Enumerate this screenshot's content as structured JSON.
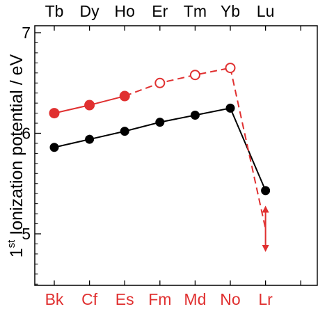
{
  "chart_data": {
    "type": "line",
    "ylabel_prefix": "1",
    "ylabel_superscript": "st",
    "ylabel_main": "Ionization potential / eV",
    "ylim": [
      4.5,
      7.1
    ],
    "yticks": [
      5,
      6,
      7
    ],
    "categories_bottom": [
      "Bk",
      "Cf",
      "Es",
      "Fm",
      "Md",
      "No",
      "Lr"
    ],
    "categories_top": [
      "Tb",
      "Dy",
      "Ho",
      "Er",
      "Tm",
      "Yb",
      "Lu"
    ],
    "colors": {
      "lanthanide": "#000000",
      "actinide": "#e03030",
      "axis": "#000000"
    },
    "series": [
      {
        "group": "lanthanides",
        "labels": [
          "Tb",
          "Dy",
          "Ho",
          "Er",
          "Tm",
          "Yb",
          "Lu"
        ],
        "values": [
          5.86,
          5.94,
          6.02,
          6.11,
          6.18,
          6.25,
          5.43
        ],
        "marker": "filled",
        "line": "solid"
      },
      {
        "group": "actinides-measured",
        "labels": [
          "Bk",
          "Cf",
          "Es"
        ],
        "values": [
          6.2,
          6.28,
          6.37
        ],
        "marker": "filled-large",
        "line": "solid"
      },
      {
        "group": "actinides-predicted",
        "labels": [
          "Es",
          "Fm",
          "Md",
          "No"
        ],
        "values": [
          6.37,
          6.5,
          6.58,
          6.65
        ],
        "marker": "open",
        "line": "dashed"
      },
      {
        "group": "lr-prediction",
        "labels": [
          "No",
          "Lr"
        ],
        "values": [
          6.65,
          5.05
        ],
        "marker": "none",
        "line": "dashed"
      }
    ],
    "range_annotation": {
      "label": "Lr",
      "upper": 5.28,
      "lower": 4.82
    }
  }
}
